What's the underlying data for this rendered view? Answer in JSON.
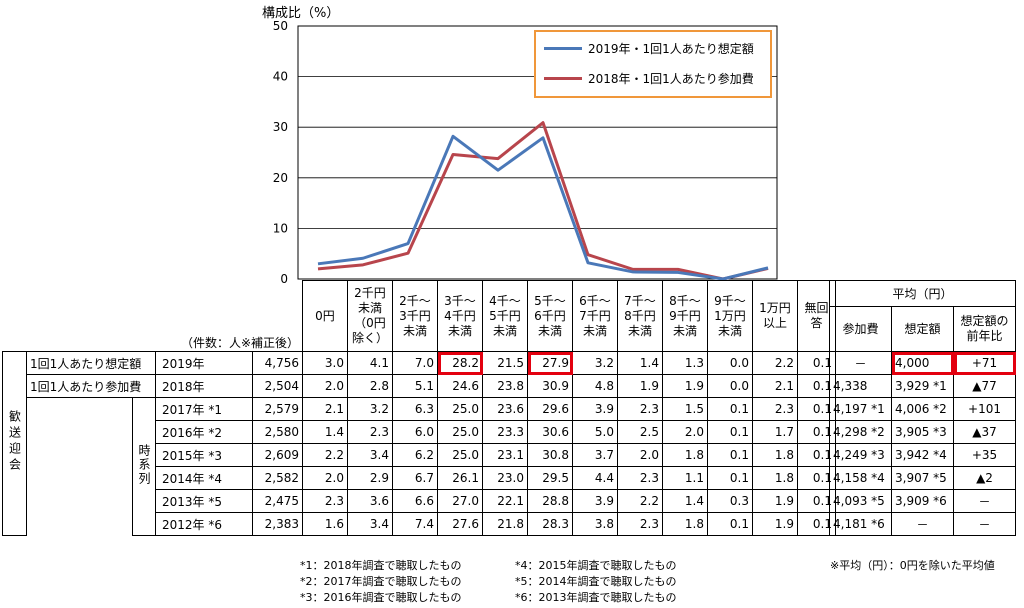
{
  "chart_data": {
    "type": "line",
    "ylabel": "構成比（%）",
    "ylim": [
      0,
      50
    ],
    "yticks": [
      0,
      10,
      20,
      30,
      40,
      50
    ],
    "categories": [
      "0円",
      "2千円未満(0円除く)",
      "2千～3千円未満",
      "3千～4千円未満",
      "4千～5千円未満",
      "5千～6千円未満",
      "6千～7千円未満",
      "7千～8千円未満",
      "8千～9千円未満",
      "9千～1万円未満",
      "1万円以上"
    ],
    "series": [
      {
        "name": "2019年・1回1人あたり想定額",
        "color": "#4a78b8",
        "values": [
          3.0,
          4.1,
          7.0,
          28.2,
          21.5,
          27.9,
          3.2,
          1.4,
          1.3,
          0.0,
          2.2
        ]
      },
      {
        "name": "2018年・1回1人あたり参加費",
        "color": "#b8454c",
        "values": [
          2.0,
          2.8,
          5.1,
          24.6,
          23.8,
          30.9,
          4.8,
          1.9,
          1.9,
          0.0,
          2.1
        ]
      }
    ],
    "legend_position": "top-right"
  },
  "table": {
    "count_label": "（件数：人※補正後）",
    "col_headers": [
      "0円",
      "2千円未満（0円除く）",
      "2千～3千円未満",
      "3千～4千円未満",
      "4千～5千円未満",
      "5千～6千円未満",
      "6千～7千円未満",
      "7千～8千円未満",
      "8千～9千円未満",
      "9千～1万円未満",
      "1万円以上",
      "無回答"
    ],
    "avg_title": "平均（円）",
    "avg_headers": [
      "参加費",
      "想定額",
      "想定額の前年比"
    ],
    "group_label": "歓送迎会",
    "series_label": "時系列",
    "rows": [
      {
        "label": "1回1人あたり想定額",
        "year": "2019年",
        "n": "4,756",
        "vals": [
          "3.0",
          "4.1",
          "7.0",
          "28.2",
          "21.5",
          "27.9",
          "3.2",
          "1.4",
          "1.3",
          "0.0",
          "2.2",
          "0.1"
        ],
        "fee": "－",
        "est": "4,000",
        "yoy": "+71"
      },
      {
        "label": "1回1人あたり参加費",
        "year": "2018年",
        "n": "2,504",
        "vals": [
          "2.0",
          "2.8",
          "5.1",
          "24.6",
          "23.8",
          "30.9",
          "4.8",
          "1.9",
          "1.9",
          "0.0",
          "2.1",
          "0.1"
        ],
        "fee": "4,338",
        "est": "3,929 *1",
        "yoy": "▲77"
      },
      {
        "year": "2017年 *1",
        "n": "2,579",
        "vals": [
          "2.1",
          "3.2",
          "6.3",
          "25.0",
          "23.6",
          "29.6",
          "3.9",
          "2.3",
          "1.5",
          "0.1",
          "2.3",
          "0.1"
        ],
        "fee": "4,197 *1",
        "est": "4,006 *2",
        "yoy": "+101"
      },
      {
        "year": "2016年 *2",
        "n": "2,580",
        "vals": [
          "1.4",
          "2.3",
          "6.0",
          "25.0",
          "23.3",
          "30.6",
          "5.0",
          "2.5",
          "2.0",
          "0.1",
          "1.7",
          "0.1"
        ],
        "fee": "4,298 *2",
        "est": "3,905 *3",
        "yoy": "▲37"
      },
      {
        "year": "2015年 *3",
        "n": "2,609",
        "vals": [
          "2.2",
          "3.4",
          "6.2",
          "25.0",
          "23.1",
          "30.8",
          "3.7",
          "2.0",
          "1.8",
          "0.1",
          "1.8",
          "0.1"
        ],
        "fee": "4,249 *3",
        "est": "3,942 *4",
        "yoy": "+35"
      },
      {
        "year": "2014年 *4",
        "n": "2,582",
        "vals": [
          "2.0",
          "2.9",
          "6.7",
          "26.1",
          "23.0",
          "29.5",
          "4.4",
          "2.3",
          "1.1",
          "0.1",
          "1.8",
          "0.1"
        ],
        "fee": "4,158 *4",
        "est": "3,907 *5",
        "yoy": "▲2"
      },
      {
        "year": "2013年 *5",
        "n": "2,475",
        "vals": [
          "2.3",
          "3.6",
          "6.6",
          "27.0",
          "22.1",
          "28.8",
          "3.9",
          "2.2",
          "1.4",
          "0.3",
          "1.9",
          "0.1"
        ],
        "fee": "4,093 *5",
        "est": "3,909 *6",
        "yoy": "－"
      },
      {
        "year": "2012年 *6",
        "n": "2,383",
        "vals": [
          "1.6",
          "3.4",
          "7.4",
          "27.6",
          "21.8",
          "28.3",
          "3.8",
          "2.3",
          "1.8",
          "0.1",
          "1.9",
          "0.1"
        ],
        "fee": "4,181 *6",
        "est": "－",
        "yoy": "－"
      }
    ]
  },
  "footnotes_left": [
    "*1：2018年調査で聴取したもの",
    "*2：2017年調査で聴取したもの",
    "*3：2016年調査で聴取したもの"
  ],
  "footnotes_mid": [
    "*4：2015年調査で聴取したもの",
    "*5：2014年調査で聴取したもの",
    "*6：2013年調査で聴取したもの"
  ],
  "avg_note": "※平均（円）：0円を除いた平均値"
}
